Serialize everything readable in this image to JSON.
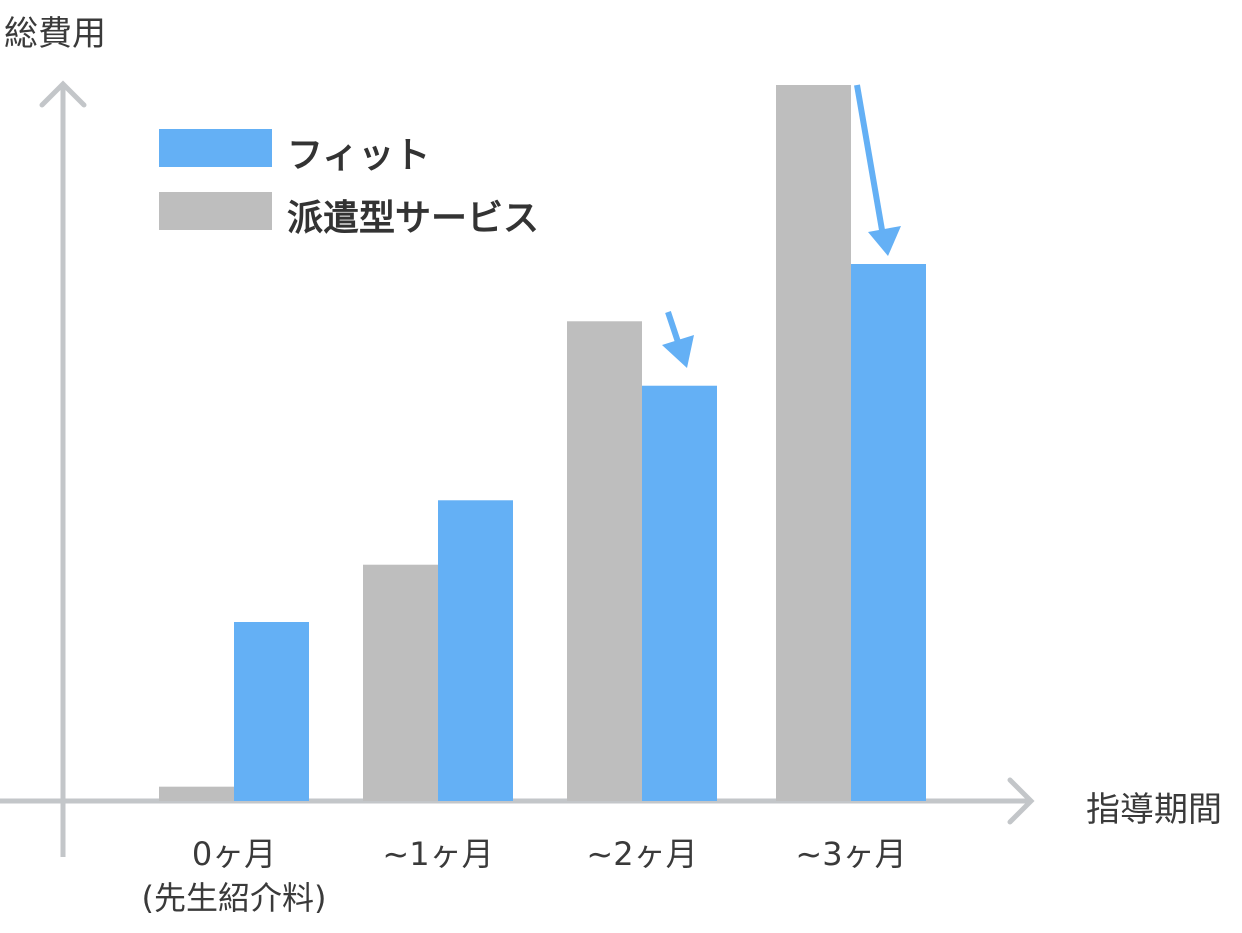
{
  "chart_data": {
    "type": "bar",
    "ylabel": "総費用",
    "xlabel": "指導期間",
    "categories": [
      "0ヶ月",
      "~1ヶ月",
      "~2ヶ月",
      "~3ヶ月"
    ],
    "category_sublabels": [
      "(先生紹介料)",
      "",
      "",
      ""
    ],
    "ylim": [
      0,
      100
    ],
    "grid": false,
    "legend_position": "top-left",
    "series": [
      {
        "name": "派遣型サービス",
        "color": "#BEBEBE",
        "values": [
          2,
          33,
          67,
          100
        ]
      },
      {
        "name": "フィット",
        "color": "#64B0F5",
        "values": [
          25,
          42,
          58,
          75
        ]
      }
    ],
    "annotations": [
      "down-arrow over ~2ヶ月",
      "down-arrow over ~3ヶ月"
    ],
    "axis_color": "#C3C6C9"
  }
}
